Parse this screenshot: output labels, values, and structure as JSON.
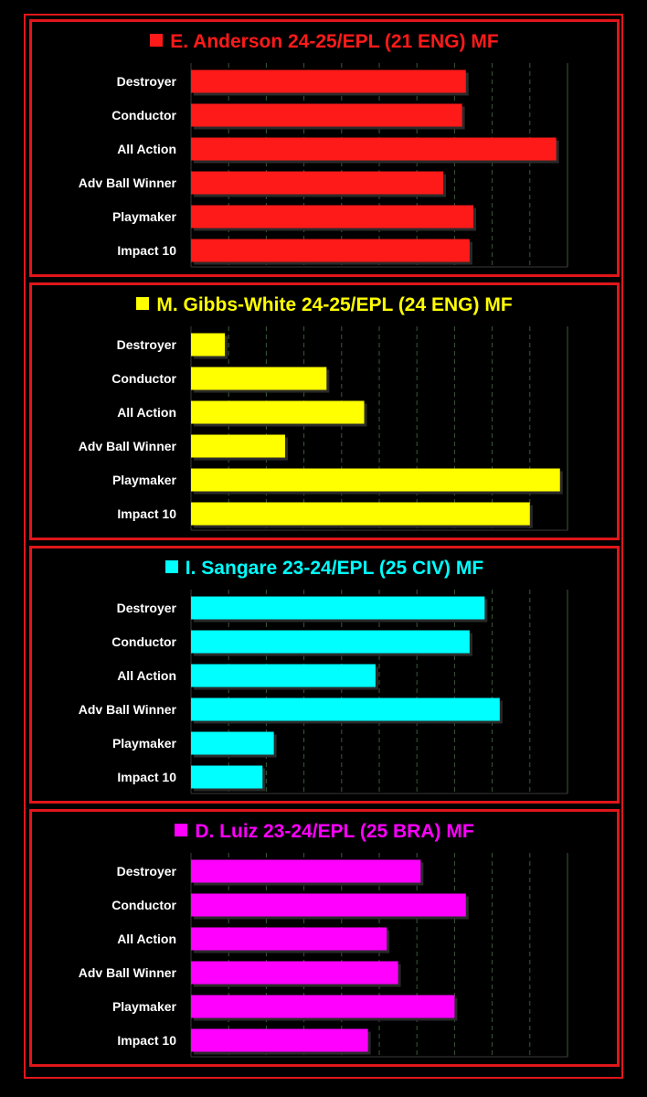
{
  "chart_data": [
    {
      "type": "bar",
      "title": "E. Anderson 24-25/EPL (21 ENG) MF",
      "color": "#ff1a1a",
      "grid_color": "#3a5a3a",
      "categories": [
        "Destroyer",
        "Conductor",
        "All Action",
        "Adv Ball Winner",
        "Playmaker",
        "Impact 10"
      ],
      "values": [
        73,
        72,
        97,
        67,
        75,
        74
      ],
      "xlim": [
        0,
        100
      ],
      "grid": true
    },
    {
      "type": "bar",
      "title": "M. Gibbs-White 24-25/EPL (24 ENG) MF",
      "color": "#ffff00",
      "grid_color": "#3a5a3a",
      "categories": [
        "Destroyer",
        "Conductor",
        "All Action",
        "Adv Ball Winner",
        "Playmaker",
        "Impact 10"
      ],
      "values": [
        9,
        36,
        46,
        25,
        98,
        90
      ],
      "xlim": [
        0,
        100
      ],
      "grid": true
    },
    {
      "type": "bar",
      "title": "I. Sangare 23-24/EPL (25 CIV) MF",
      "color": "#00ffff",
      "grid_color": "#3a5a3a",
      "categories": [
        "Destroyer",
        "Conductor",
        "All Action",
        "Adv Ball Winner",
        "Playmaker",
        "Impact 10"
      ],
      "values": [
        78,
        74,
        49,
        82,
        22,
        19
      ],
      "xlim": [
        0,
        100
      ],
      "grid": true
    },
    {
      "type": "bar",
      "title": "D. Luiz 23-24/EPL (25 BRA) MF",
      "color": "#ff00ff",
      "grid_color": "#3a5a3a",
      "categories": [
        "Destroyer",
        "Conductor",
        "All Action",
        "Adv Ball Winner",
        "Playmaker",
        "Impact 10"
      ],
      "values": [
        61,
        73,
        52,
        55,
        70,
        47
      ],
      "xlim": [
        0,
        100
      ],
      "grid": true
    }
  ]
}
